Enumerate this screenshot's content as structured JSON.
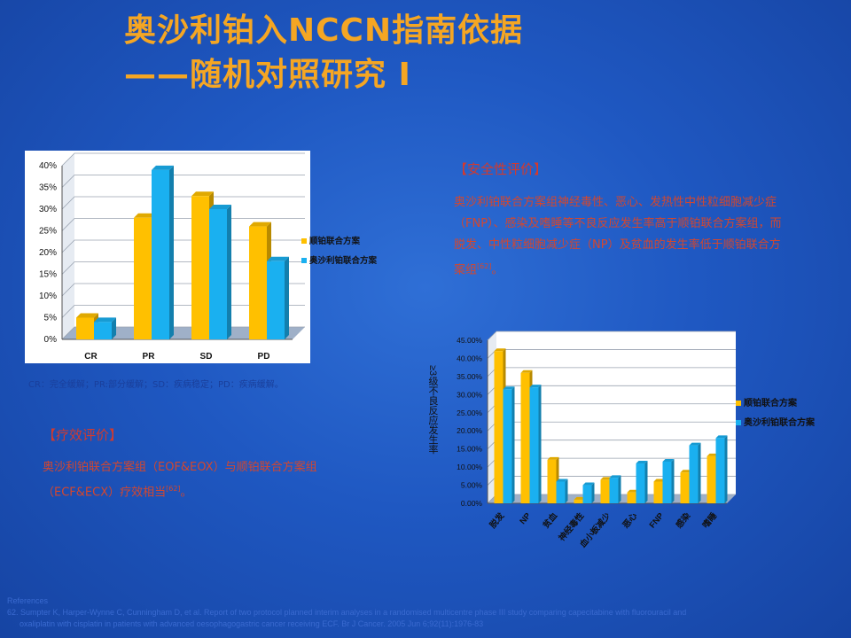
{
  "slide": {
    "title_line1": "奥沙利铂入NCCN指南依据",
    "title_line2": "——随机对照研究 I",
    "abbr_note": "CR：完全缓解；PR:部分缓解；SD：疾病稳定；PD：疾病缓解。",
    "efficacy_heading": "【疗效评价】",
    "efficacy_text": "奥沙利铂联合方案组（EOF&EOX）与顺铂联合方案组（ECF&ECX）疗效相当",
    "efficacy_ref": "[62]",
    "efficacy_end": "。",
    "safety_heading": "【安全性评价】",
    "safety_text": "奥沙利铂联合方案组神经毒性、恶心、发热性中性粒细胞减少症（FNP）、感染及嗜睡等不良反应发生率高于顺铂联合方案组，而脱发、中性粒细胞减少症（NP）及贫血的发生率低于顺铂联合方案组",
    "safety_ref": "[62]",
    "safety_end": "。",
    "references_label": "References",
    "reference_1": "62. Sumpter K, Harper-Wynne C, Cunningham D, et al. Report of two protocol planned interim analyses in a randomised multicentre phase III study comparing capecitabine with fluorouracil and",
    "reference_2": "oxaliplatin with cisplatin in patients with advanced oesophagogastric cancer receiving ECF. Br J Cancer. 2005 Jun 6;92(11):1976-83"
  },
  "colors": {
    "cisplatin": "#ffc000",
    "oxaliplatin": "#1ab0f0",
    "title": "#f5a623",
    "red_text": "#d4472e"
  },
  "chart_data": [
    {
      "type": "bar",
      "categories": [
        "CR",
        "PR",
        "SD",
        "PD"
      ],
      "series": [
        {
          "name": "顺铂联合方案",
          "values": [
            5,
            28,
            33,
            26
          ]
        },
        {
          "name": "奥沙利铂联合方案",
          "values": [
            4,
            39,
            30,
            18
          ]
        }
      ],
      "ylim": [
        0,
        40
      ],
      "yticks": [
        "0%",
        "5%",
        "10%",
        "15%",
        "20%",
        "25%",
        "30%",
        "35%",
        "40%"
      ],
      "legend": "right",
      "grid": true
    },
    {
      "type": "bar",
      "categories": [
        "脱发",
        "NP",
        "贫血",
        "神经毒性",
        "血小板减少",
        "恶心",
        "FNP",
        "感染",
        "嗜睡"
      ],
      "series": [
        {
          "name": "顺铂联合方案",
          "values": [
            42,
            36,
            12,
            1,
            6.5,
            3,
            6,
            8.5,
            13
          ]
        },
        {
          "name": "奥沙利铂联合方案",
          "values": [
            31.5,
            32,
            6,
            5,
            7,
            11,
            11.5,
            16,
            18
          ]
        }
      ],
      "ylabel": "≥3级不良反应发生率",
      "ylim": [
        0,
        45
      ],
      "yticks": [
        "0.00%",
        "5.00%",
        "10.00%",
        "15.00%",
        "20.00%",
        "25.00%",
        "30.00%",
        "35.00%",
        "40.00%",
        "45.00%"
      ],
      "legend": "right",
      "grid": true
    }
  ]
}
